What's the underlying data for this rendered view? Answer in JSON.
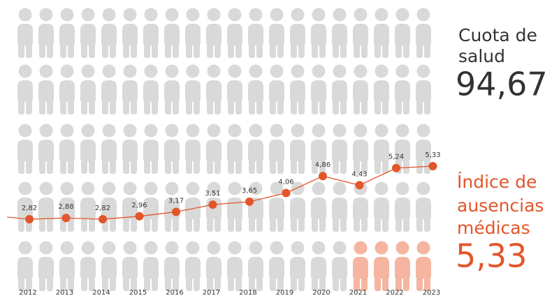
{
  "chart_data": {
    "type": "line",
    "categories": [
      "2012",
      "2013",
      "2014",
      "2015",
      "2016",
      "2017",
      "2018",
      "2019",
      "2020",
      "2021",
      "2022",
      "2023"
    ],
    "values": [
      2.82,
      2.88,
      2.82,
      2.96,
      3.17,
      3.51,
      3.65,
      4.06,
      4.86,
      4.43,
      5.24,
      5.33
    ],
    "value_labels": [
      "2,82",
      "2,88",
      "2,82",
      "2,96",
      "3,17",
      "3,51",
      "3,65",
      "4,06",
      "4,86",
      "4,43",
      "5,24",
      "5,33"
    ],
    "color": "#e2562b"
  },
  "sidebar": {
    "health_lines": [
      "Cuota de",
      "salud"
    ],
    "health_value": "94,67",
    "absence_lines": [
      "Índice de",
      "ausencias",
      "médicas"
    ],
    "absence_value": "5,33"
  }
}
